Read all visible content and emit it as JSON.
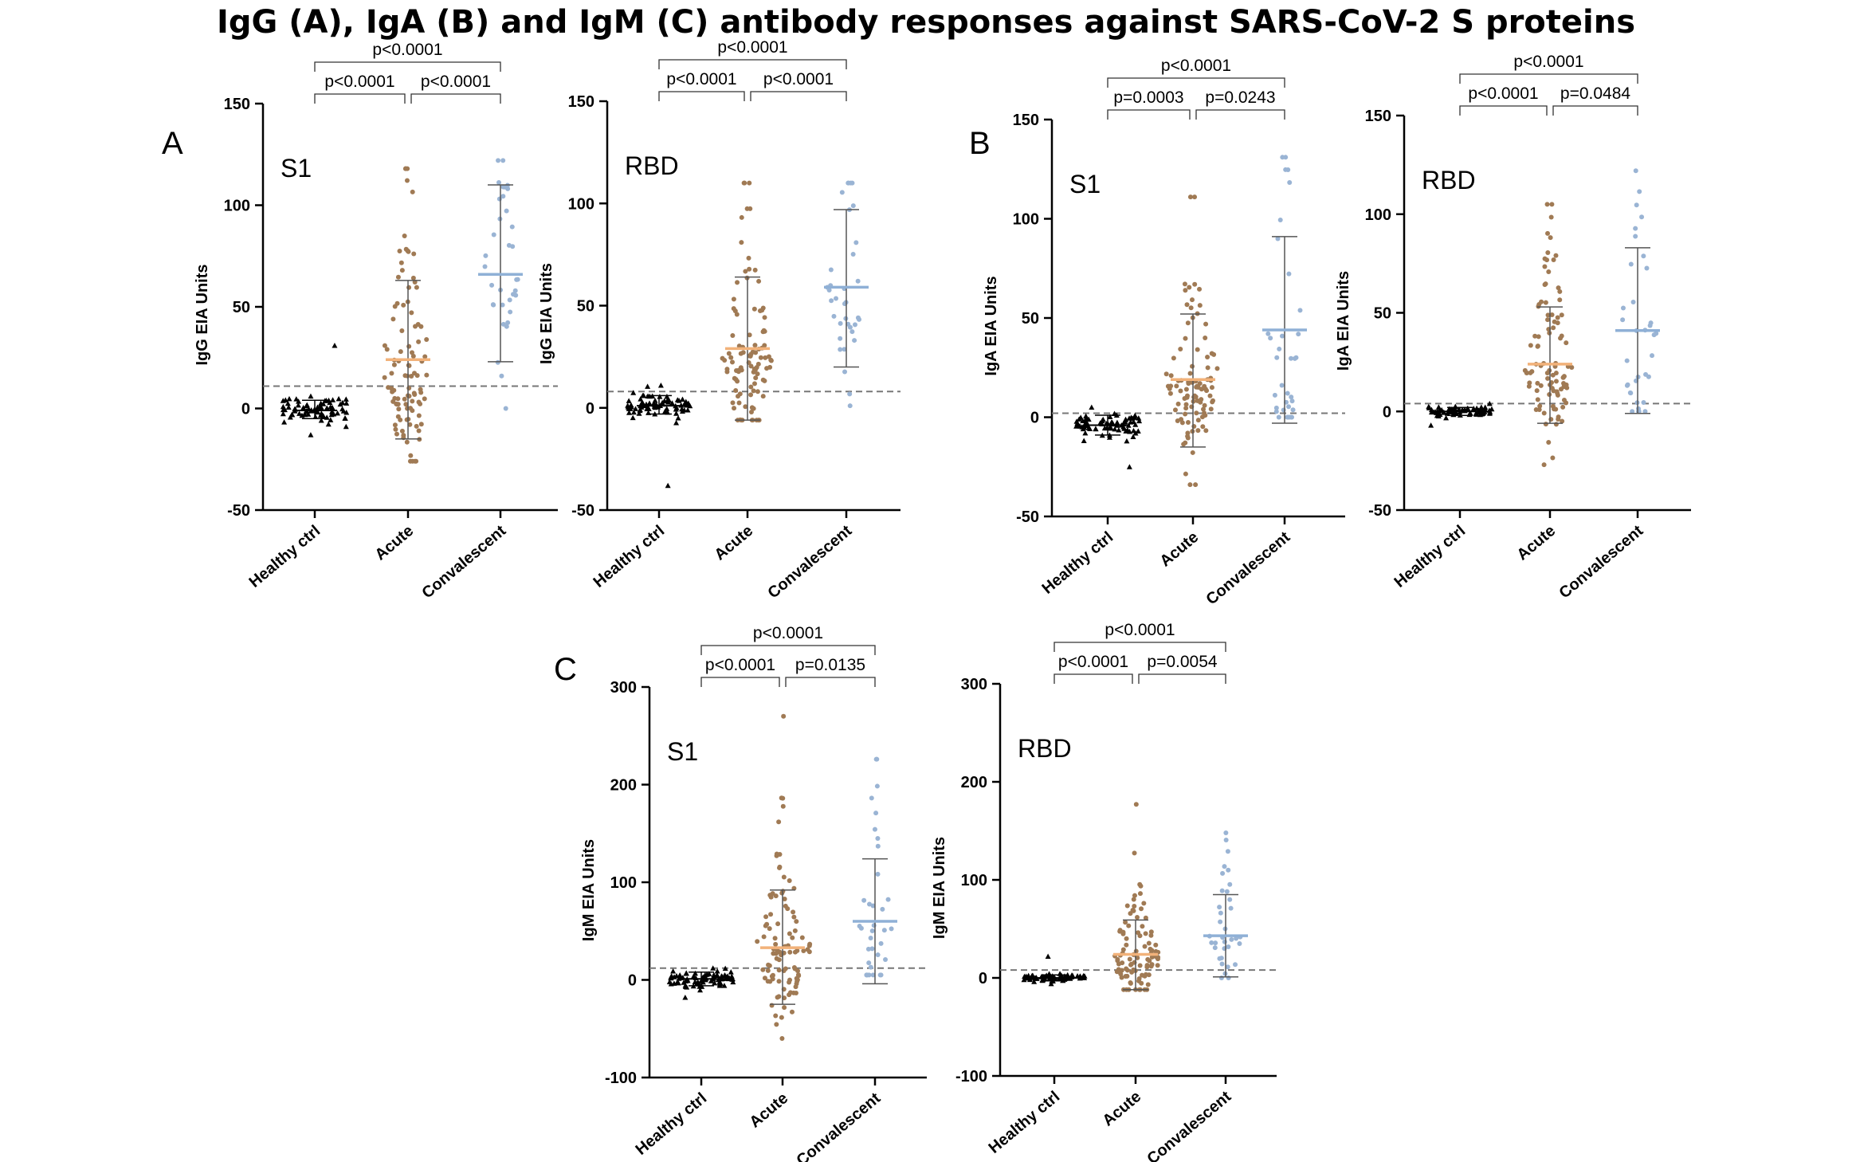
{
  "title": "IgG (A), IgA (B) and IgM (C) antibody responses against SARS-CoV-2 S proteins",
  "panels": [
    {
      "letter": "A"
    },
    {
      "letter": "B"
    },
    {
      "letter": "C"
    }
  ],
  "colors": {
    "healthy": "#000000",
    "acute_points": "#a07a54",
    "acute_mean": "#f2b27a",
    "convalescent_points": "#9ab4d4",
    "convalescent_mean": "#8fb0d6",
    "bars": "#555555",
    "cutoff": "#777777"
  },
  "chart_data": [
    {
      "type": "scatter",
      "id": "igg-s1",
      "panel": "A",
      "inset_label": "S1",
      "ylabel": "IgG EIA Units",
      "ylim": [
        -50,
        150
      ],
      "yticks": [
        -50,
        0,
        50,
        100,
        150
      ],
      "categories": [
        "Healthy ctrl",
        "Acute",
        "Convalescent"
      ],
      "cutoff": 11,
      "groups": [
        {
          "name": "Healthy ctrl",
          "mean": -1,
          "sd_low": -5,
          "sd_high": 4,
          "n": 80,
          "min": -13,
          "max": 31
        },
        {
          "name": "Acute",
          "mean": 24,
          "sd_low": -15,
          "sd_high": 63,
          "n": 100,
          "min": -26,
          "max": 118
        },
        {
          "name": "Convalescent",
          "mean": 66,
          "sd_low": 23,
          "sd_high": 110,
          "n": 35,
          "min": 0,
          "max": 122
        }
      ],
      "comparisons": [
        {
          "from": 0,
          "to": 1,
          "label": "p<0.0001",
          "level": 1
        },
        {
          "from": 1,
          "to": 2,
          "label": "p<0.0001",
          "level": 1
        },
        {
          "from": 0,
          "to": 2,
          "label": "p<0.0001",
          "level": 2
        }
      ]
    },
    {
      "type": "scatter",
      "id": "igg-rbd",
      "panel": "A",
      "inset_label": "RBD",
      "ylabel": "IgG EIA Units",
      "ylim": [
        -50,
        150
      ],
      "yticks": [
        -50,
        0,
        50,
        100,
        150
      ],
      "categories": [
        "Healthy ctrl",
        "Acute",
        "Convalescent"
      ],
      "cutoff": 8,
      "groups": [
        {
          "name": "Healthy ctrl",
          "mean": 1,
          "sd_low": -3,
          "sd_high": 6,
          "n": 80,
          "min": -38,
          "max": 11
        },
        {
          "name": "Acute",
          "mean": 29,
          "sd_low": -6,
          "sd_high": 64,
          "n": 100,
          "min": -6,
          "max": 110
        },
        {
          "name": "Convalescent",
          "mean": 59,
          "sd_low": 20,
          "sd_high": 97,
          "n": 35,
          "min": 1,
          "max": 110
        }
      ],
      "comparisons": [
        {
          "from": 0,
          "to": 1,
          "label": "p<0.0001",
          "level": 1
        },
        {
          "from": 1,
          "to": 2,
          "label": "p<0.0001",
          "level": 1
        },
        {
          "from": 0,
          "to": 2,
          "label": "p<0.0001",
          "level": 2
        }
      ]
    },
    {
      "type": "scatter",
      "id": "iga-s1",
      "panel": "B",
      "inset_label": "S1",
      "ylabel": "IgA EIA Units",
      "ylim": [
        -50,
        150
      ],
      "yticks": [
        -50,
        0,
        50,
        100,
        150
      ],
      "categories": [
        "Healthy ctrl",
        "Acute",
        "Convalescent"
      ],
      "cutoff": 2,
      "groups": [
        {
          "name": "Healthy ctrl",
          "mean": -4,
          "sd_low": -9,
          "sd_high": 1,
          "n": 80,
          "min": -25,
          "max": 5
        },
        {
          "name": "Acute",
          "mean": 19,
          "sd_low": -15,
          "sd_high": 52,
          "n": 100,
          "min": -34,
          "max": 111
        },
        {
          "name": "Convalescent",
          "mean": 44,
          "sd_low": -3,
          "sd_high": 91,
          "n": 35,
          "min": 0,
          "max": 131
        }
      ],
      "comparisons": [
        {
          "from": 0,
          "to": 1,
          "label": "p=0.0003",
          "level": 1
        },
        {
          "from": 1,
          "to": 2,
          "label": "p=0.0243",
          "level": 1
        },
        {
          "from": 0,
          "to": 2,
          "label": "p<0.0001",
          "level": 2
        }
      ]
    },
    {
      "type": "scatter",
      "id": "iga-rbd",
      "panel": "B",
      "inset_label": "RBD",
      "ylabel": "IgA EIA Units",
      "ylim": [
        -50,
        150
      ],
      "yticks": [
        -50,
        0,
        50,
        100,
        150
      ],
      "categories": [
        "Healthy ctrl",
        "Acute",
        "Convalescent"
      ],
      "cutoff": 4,
      "groups": [
        {
          "name": "Healthy ctrl",
          "mean": 0,
          "sd_low": -2,
          "sd_high": 2,
          "n": 80,
          "min": -7,
          "max": 4
        },
        {
          "name": "Acute",
          "mean": 24,
          "sd_low": -6,
          "sd_high": 53,
          "n": 100,
          "min": -27,
          "max": 105
        },
        {
          "name": "Convalescent",
          "mean": 41,
          "sd_low": -1,
          "sd_high": 83,
          "n": 35,
          "min": 0,
          "max": 122
        }
      ],
      "comparisons": [
        {
          "from": 0,
          "to": 1,
          "label": "p<0.0001",
          "level": 1
        },
        {
          "from": 1,
          "to": 2,
          "label": "p=0.0484",
          "level": 1
        },
        {
          "from": 0,
          "to": 2,
          "label": "p<0.0001",
          "level": 2
        }
      ]
    },
    {
      "type": "scatter",
      "id": "igm-s1",
      "panel": "C",
      "inset_label": "S1",
      "ylabel": "IgM EIA Units",
      "ylim": [
        -100,
        300
      ],
      "yticks": [
        -100,
        0,
        100,
        200,
        300
      ],
      "categories": [
        "Healthy ctrl",
        "Acute",
        "Convalescent"
      ],
      "cutoff": 12,
      "groups": [
        {
          "name": "Healthy ctrl",
          "mean": 1,
          "sd_low": -6,
          "sd_high": 8,
          "n": 80,
          "min": -18,
          "max": 12
        },
        {
          "name": "Acute",
          "mean": 33,
          "sd_low": -25,
          "sd_high": 92,
          "n": 100,
          "min": -60,
          "max": 270
        },
        {
          "name": "Convalescent",
          "mean": 60,
          "sd_low": -4,
          "sd_high": 124,
          "n": 35,
          "min": 5,
          "max": 226
        }
      ],
      "comparisons": [
        {
          "from": 0,
          "to": 1,
          "label": "p<0.0001",
          "level": 1
        },
        {
          "from": 1,
          "to": 2,
          "label": "p=0.0135",
          "level": 1
        },
        {
          "from": 0,
          "to": 2,
          "label": "p<0.0001",
          "level": 2
        }
      ]
    },
    {
      "type": "scatter",
      "id": "igm-rbd",
      "panel": "C",
      "inset_label": "RBD",
      "ylabel": "IgM EIA Units",
      "ylim": [
        -100,
        300
      ],
      "yticks": [
        -100,
        0,
        100,
        200,
        300
      ],
      "categories": [
        "Healthy ctrl",
        "Acute",
        "Convalescent"
      ],
      "cutoff": 8,
      "groups": [
        {
          "name": "Healthy ctrl",
          "mean": 0,
          "sd_low": -3,
          "sd_high": 3,
          "n": 80,
          "min": -6,
          "max": 22
        },
        {
          "name": "Acute",
          "mean": 24,
          "sd_low": -12,
          "sd_high": 59,
          "n": 100,
          "min": -12,
          "max": 177
        },
        {
          "name": "Convalescent",
          "mean": 43,
          "sd_low": 1,
          "sd_high": 85,
          "n": 35,
          "min": 0,
          "max": 148
        }
      ],
      "comparisons": [
        {
          "from": 0,
          "to": 1,
          "label": "p<0.0001",
          "level": 1
        },
        {
          "from": 1,
          "to": 2,
          "label": "p=0.0054",
          "level": 1
        },
        {
          "from": 0,
          "to": 2,
          "label": "p<0.0001",
          "level": 2
        }
      ]
    }
  ]
}
